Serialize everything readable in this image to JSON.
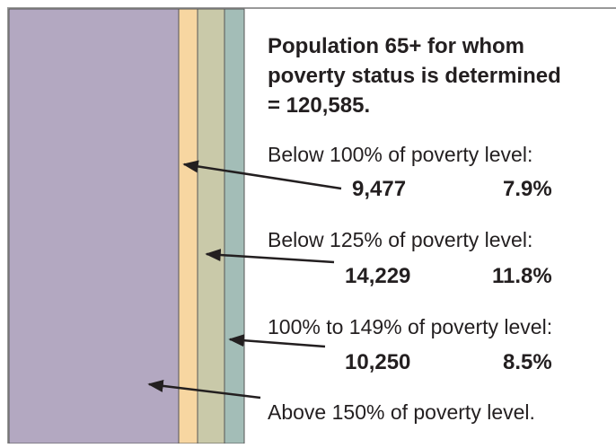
{
  "title_lines": [
    "Population 65+ for whom",
    "poverty status is determined",
    "= 120,585."
  ],
  "items": [
    {
      "label": "Below 100% of poverty level:",
      "count": "9,477",
      "percent": "7.9%"
    },
    {
      "label": "Below 125% of poverty level:",
      "count": "14,229",
      "percent": "11.8%"
    },
    {
      "label": "100% to 149% of poverty level:",
      "count": "10,250",
      "percent": "8.5%"
    },
    {
      "label": "Above 150% of poverty level."
    }
  ]
}
